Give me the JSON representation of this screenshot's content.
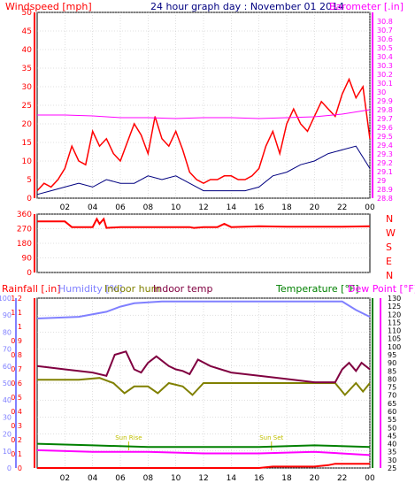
{
  "colors": {
    "wind": "#ff0000",
    "gust_avg": "#000080",
    "barometer": "#ff00ff",
    "humidity": "#8080ff",
    "indoor_hum": "#808000",
    "indoor_temp": "#800040",
    "temperature": "#008000",
    "dewpoint": "#ff00ff",
    "rain": "#ff0000",
    "title": "#000080",
    "grid": "#c0c0c0",
    "axis": "#000000"
  },
  "chart_data": [
    {
      "type": "line",
      "title": "24 hour graph day : November 01 2014",
      "ylabel": "Windspeed [mph]",
      "y2label": "Barometer [.in]",
      "x_ticks": [
        "02",
        "04",
        "06",
        "08",
        "10",
        "12",
        "14",
        "16",
        "18",
        "20",
        "22",
        "00"
      ],
      "ylim": [
        0,
        50
      ],
      "y_ticks": [
        "0",
        "5",
        "10",
        "15",
        "20",
        "25",
        "30",
        "35",
        "40",
        "45",
        "50"
      ],
      "y2lim": [
        28.8,
        30.9
      ],
      "y2_ticks": [
        "28.8",
        "28.9",
        "29",
        "29.1",
        "29.2",
        "29.3",
        "29.4",
        "29.5",
        "29.6",
        "29.7",
        "29.8",
        "29.9",
        "30",
        "30.1",
        "30.2",
        "30.3",
        "30.4",
        "30.5",
        "30.6",
        "30.7",
        "30.8"
      ],
      "series": [
        {
          "name": "Windspeed [mph]",
          "axis": "left",
          "color": "#ff0000",
          "x": [
            0,
            0.5,
            1,
            1.5,
            2,
            2.5,
            3,
            3.5,
            4,
            4.5,
            5,
            5.5,
            6,
            6.5,
            7,
            7.5,
            8,
            8.5,
            9,
            9.5,
            10,
            10.5,
            11,
            11.5,
            12,
            12.5,
            13,
            13.5,
            14,
            14.5,
            15,
            15.5,
            16,
            16.5,
            17,
            17.5,
            18,
            18.5,
            19,
            19.5,
            20,
            20.5,
            21,
            21.5,
            22,
            22.5,
            23,
            23.5,
            24
          ],
          "y": [
            2,
            4,
            3,
            5,
            8,
            14,
            10,
            9,
            18,
            14,
            16,
            12,
            10,
            15,
            20,
            17,
            12,
            22,
            16,
            14,
            18,
            13,
            7,
            5,
            4,
            5,
            5,
            6,
            6,
            5,
            5,
            6,
            8,
            14,
            18,
            12,
            20,
            24,
            20,
            18,
            22,
            26,
            24,
            22,
            28,
            32,
            27,
            30,
            16
          ]
        },
        {
          "name": "Average wind",
          "axis": "left",
          "color": "#000080",
          "x": [
            0,
            1,
            2,
            3,
            4,
            5,
            6,
            7,
            8,
            9,
            10,
            11,
            12,
            13,
            14,
            15,
            16,
            17,
            18,
            19,
            20,
            21,
            22,
            23,
            24
          ],
          "y": [
            1,
            2,
            3,
            4,
            3,
            5,
            4,
            4,
            6,
            5,
            6,
            4,
            2,
            2,
            2,
            2,
            3,
            6,
            7,
            9,
            10,
            12,
            13,
            14,
            8
          ]
        },
        {
          "name": "Barometer [.in]",
          "axis": "right",
          "color": "#ff00ff",
          "x": [
            0,
            2,
            4,
            6,
            8,
            10,
            12,
            14,
            16,
            18,
            20,
            22,
            24
          ],
          "y": [
            29.74,
            29.74,
            29.73,
            29.71,
            29.71,
            29.7,
            29.71,
            29.71,
            29.7,
            29.71,
            29.72,
            29.75,
            29.8
          ]
        }
      ]
    },
    {
      "type": "line",
      "ylabel": "Wind direction",
      "ylim": [
        0,
        360
      ],
      "y_ticks": [
        "0",
        "90",
        "180",
        "270",
        "360"
      ],
      "compass": [
        "N",
        "W",
        "S",
        "E",
        "N"
      ],
      "series": [
        {
          "name": "Wind direction",
          "color": "#ff0000",
          "x": [
            0,
            2,
            2.5,
            4,
            4.3,
            4.5,
            4.8,
            5,
            6,
            8,
            10,
            11,
            11.3,
            12,
            13,
            13.5,
            14,
            16,
            18,
            20,
            22,
            24
          ],
          "y": [
            315,
            315,
            280,
            280,
            330,
            300,
            330,
            275,
            280,
            280,
            280,
            280,
            275,
            280,
            280,
            300,
            280,
            285,
            282,
            282,
            282,
            285
          ]
        }
      ]
    },
    {
      "type": "line",
      "ylabel": "Rainfall [.in]",
      "labels": [
        "Humidity [%]",
        "Indoor hum",
        "Indoor temp",
        "Temperature [°F]",
        "Dew Point [°F]"
      ],
      "rain_ticks": [
        "0",
        "0.1",
        "0.2",
        "0.3",
        "0.4",
        "0.5",
        "0.6",
        "0.7",
        "0.8",
        "0.9",
        "1",
        "1.1",
        "1.2"
      ],
      "hum_ticks": [
        "0",
        "10",
        "20",
        "30",
        "40",
        "50",
        "60",
        "70",
        "80",
        "90",
        "100"
      ],
      "temp_ticks": [
        "25",
        "30",
        "35",
        "40",
        "45",
        "50",
        "55",
        "60",
        "65",
        "70",
        "75",
        "80",
        "85",
        "90",
        "95",
        "100",
        "105",
        "110",
        "115",
        "120",
        "125",
        "130"
      ],
      "x_ticks": [
        "02",
        "04",
        "06",
        "08",
        "10",
        "12",
        "14",
        "16",
        "18",
        "20",
        "22",
        "00"
      ],
      "annotations": [
        "Sun Rise",
        "Sun Set"
      ],
      "series": [
        {
          "name": "Humidity [%]",
          "color": "#8080ff",
          "x": [
            0,
            3,
            5,
            6,
            7,
            9,
            12,
            14,
            16,
            18,
            20,
            22,
            23,
            24
          ],
          "y": [
            88,
            89,
            92,
            95,
            97,
            98,
            98,
            98,
            98,
            98,
            98,
            98,
            93,
            89
          ]
        },
        {
          "name": "Indoor hum",
          "color": "#808000",
          "x": [
            0,
            3,
            4.5,
            5.5,
            6.3,
            7,
            8,
            8.7,
            9.5,
            10.5,
            11.2,
            12,
            14,
            16,
            18,
            20,
            21.5,
            22.2,
            23,
            23.5,
            24
          ],
          "y": [
            52,
            52,
            53,
            50,
            44,
            48,
            48,
            44,
            50,
            48,
            43,
            50,
            50,
            50,
            50,
            50,
            50,
            43,
            50,
            45,
            50
          ]
        },
        {
          "name": "Indoor temp",
          "color": "#800040",
          "x": [
            0,
            2,
            4,
            5,
            5.6,
            6.4,
            7,
            7.5,
            8,
            8.6,
            9.5,
            10,
            10.5,
            11,
            11.6,
            12.5,
            14,
            16,
            18,
            20,
            21.5,
            22,
            22.5,
            23,
            23.4,
            24
          ],
          "y": [
            88,
            86,
            84,
            82,
            95,
            97,
            86,
            84,
            90,
            94,
            88,
            86,
            85,
            83,
            92,
            88,
            84,
            82,
            80,
            78,
            78,
            86,
            90,
            85,
            90,
            86
          ]
        },
        {
          "name": "Temperature [°F]",
          "color": "#008000",
          "x": [
            0,
            4,
            8,
            12,
            16,
            20,
            24
          ],
          "y": [
            40,
            39,
            38,
            38,
            38,
            39,
            38
          ]
        },
        {
          "name": "Dew Point [°F]",
          "color": "#ff00ff",
          "x": [
            0,
            4,
            8,
            12,
            16,
            20,
            24
          ],
          "y": [
            36,
            35,
            35,
            34,
            34,
            35,
            33
          ]
        },
        {
          "name": "Rainfall [.in]",
          "color": "#ff0000",
          "x": [
            0,
            6,
            12,
            16,
            17,
            20,
            21,
            21.5,
            22,
            23,
            24
          ],
          "y": [
            0,
            0,
            0,
            0,
            0.01,
            0.01,
            0.02,
            0.03,
            0.03,
            0.03,
            0.03
          ]
        }
      ]
    }
  ]
}
